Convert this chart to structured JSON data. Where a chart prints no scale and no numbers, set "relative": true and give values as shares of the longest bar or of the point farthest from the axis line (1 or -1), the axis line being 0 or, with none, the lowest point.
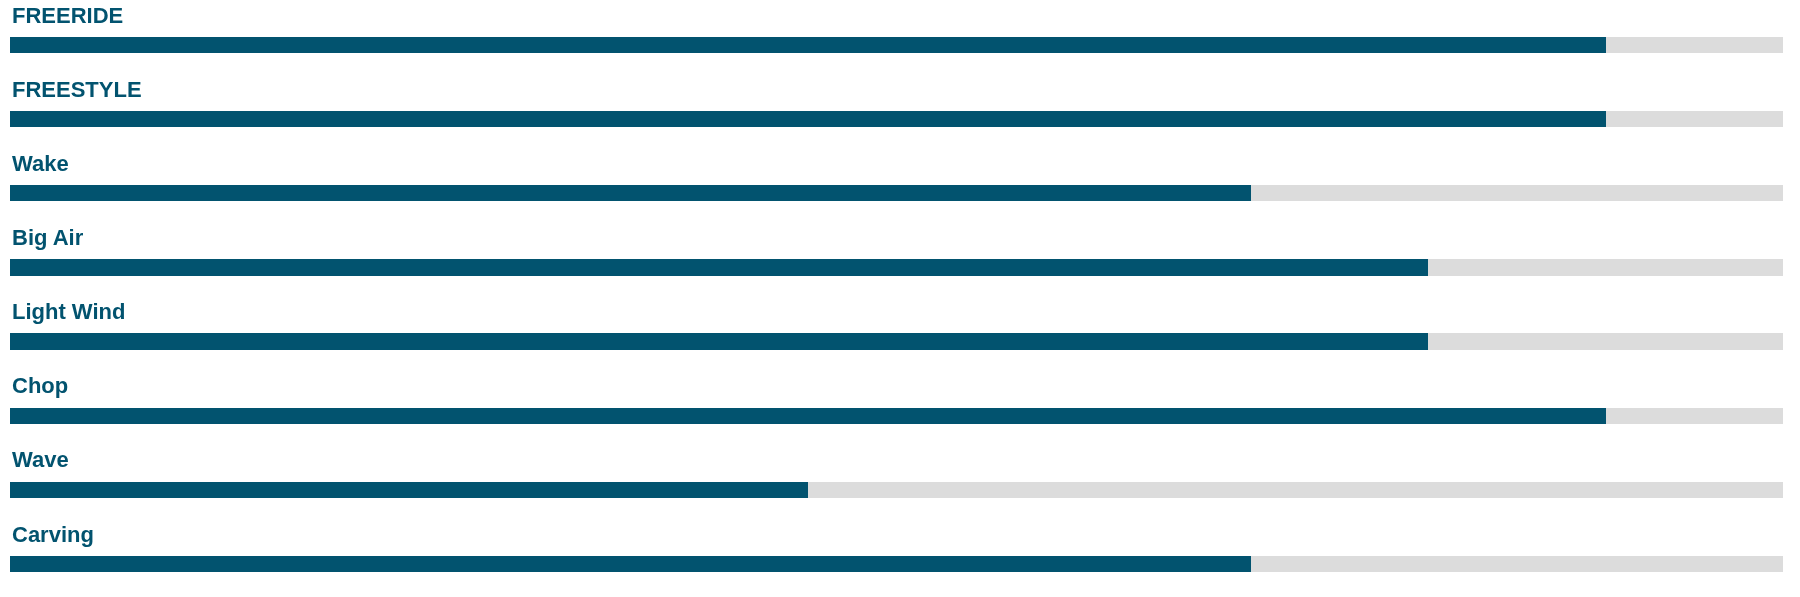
{
  "chart_data": {
    "type": "bar",
    "orientation": "horizontal",
    "stacked": true,
    "relative": true,
    "categories": [
      "FREERIDE",
      "FREESTYLE",
      "Wake",
      "Big Air",
      "Light Wind",
      "Chop",
      "Wave",
      "Carving"
    ],
    "series": [
      {
        "color": "#02536f",
        "values": [
          0.9,
          0.9,
          0.7,
          0.8,
          0.8,
          0.9,
          0.45,
          0.7
        ]
      },
      {
        "color": "#dcdcdc",
        "values": [
          0.1,
          0.1,
          0.3,
          0.2,
          0.2,
          0.1,
          0.55,
          0.3
        ]
      }
    ]
  }
}
